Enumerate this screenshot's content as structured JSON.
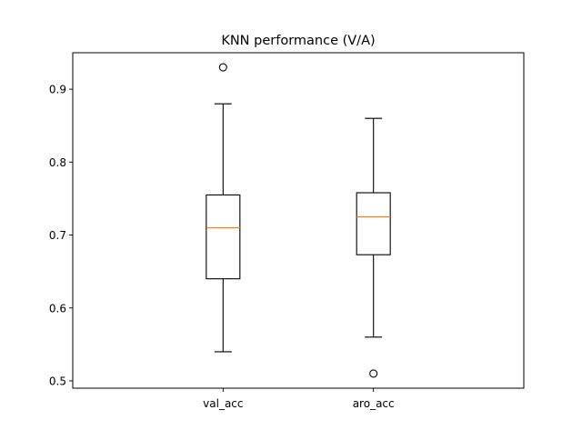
{
  "chart_data": {
    "type": "box",
    "title": "KNN performance (V/A)",
    "xlabel": "",
    "ylabel": "",
    "ylim": [
      0.49,
      0.95
    ],
    "yticks": [
      0.5,
      0.6,
      0.7,
      0.8,
      0.9
    ],
    "ytick_labels": [
      "0.5",
      "0.6",
      "0.7",
      "0.8",
      "0.9"
    ],
    "categories": [
      "val_acc",
      "aro_acc"
    ],
    "boxes": [
      {
        "name": "val_acc",
        "whisker_low": 0.54,
        "q1": 0.64,
        "median": 0.71,
        "q3": 0.755,
        "whisker_high": 0.88,
        "outliers": [
          0.93
        ]
      },
      {
        "name": "aro_acc",
        "whisker_low": 0.56,
        "q1": 0.673,
        "median": 0.725,
        "q3": 0.758,
        "whisker_high": 0.86,
        "outliers": [
          0.51
        ]
      }
    ],
    "grid": false,
    "median_color": "#ff7f0e",
    "box_color": "#000000"
  }
}
